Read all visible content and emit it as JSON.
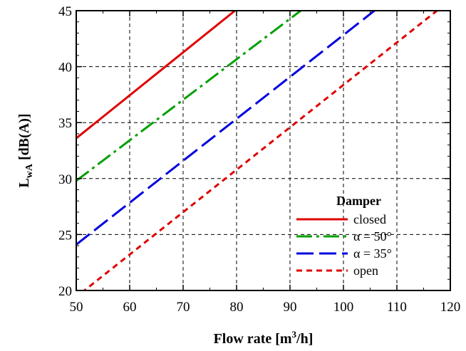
{
  "chart_data": {
    "type": "line",
    "title": "",
    "xlabel": "Flow rate [m³/h]",
    "xlabel_parts": {
      "main": "Flow rate [m",
      "sup": "3",
      "tail": "/h]"
    },
    "ylabel": "LwA [dB(A)]",
    "ylabel_parts": {
      "main": "L",
      "sub": "wA",
      "tail": " [dB(A)]"
    },
    "xlim": [
      50,
      120
    ],
    "ylim": [
      20,
      45
    ],
    "x_ticks": [
      50,
      60,
      70,
      80,
      90,
      100,
      110,
      120
    ],
    "y_ticks": [
      20,
      25,
      30,
      35,
      40,
      45
    ],
    "grid": true,
    "legend": {
      "title": "Damper",
      "position": "bottom-right"
    },
    "series": [
      {
        "name": "closed",
        "color": "#e00000",
        "dash": "solid",
        "points": [
          [
            50,
            33.6
          ],
          [
            79.7,
            45
          ]
        ]
      },
      {
        "name": "α = 50°",
        "color": "#00a000",
        "dash": "dashdot",
        "points": [
          [
            50,
            29.8
          ],
          [
            92,
            45
          ]
        ]
      },
      {
        "name": "α = 35°",
        "color": "#0000e0",
        "dash": "longdash",
        "points": [
          [
            50,
            24.1
          ],
          [
            105.8,
            45
          ]
        ]
      },
      {
        "name": "open",
        "color": "#e00000",
        "dash": "shortdash",
        "points": [
          [
            51,
            19.8
          ],
          [
            117.5,
            45
          ]
        ]
      }
    ]
  }
}
